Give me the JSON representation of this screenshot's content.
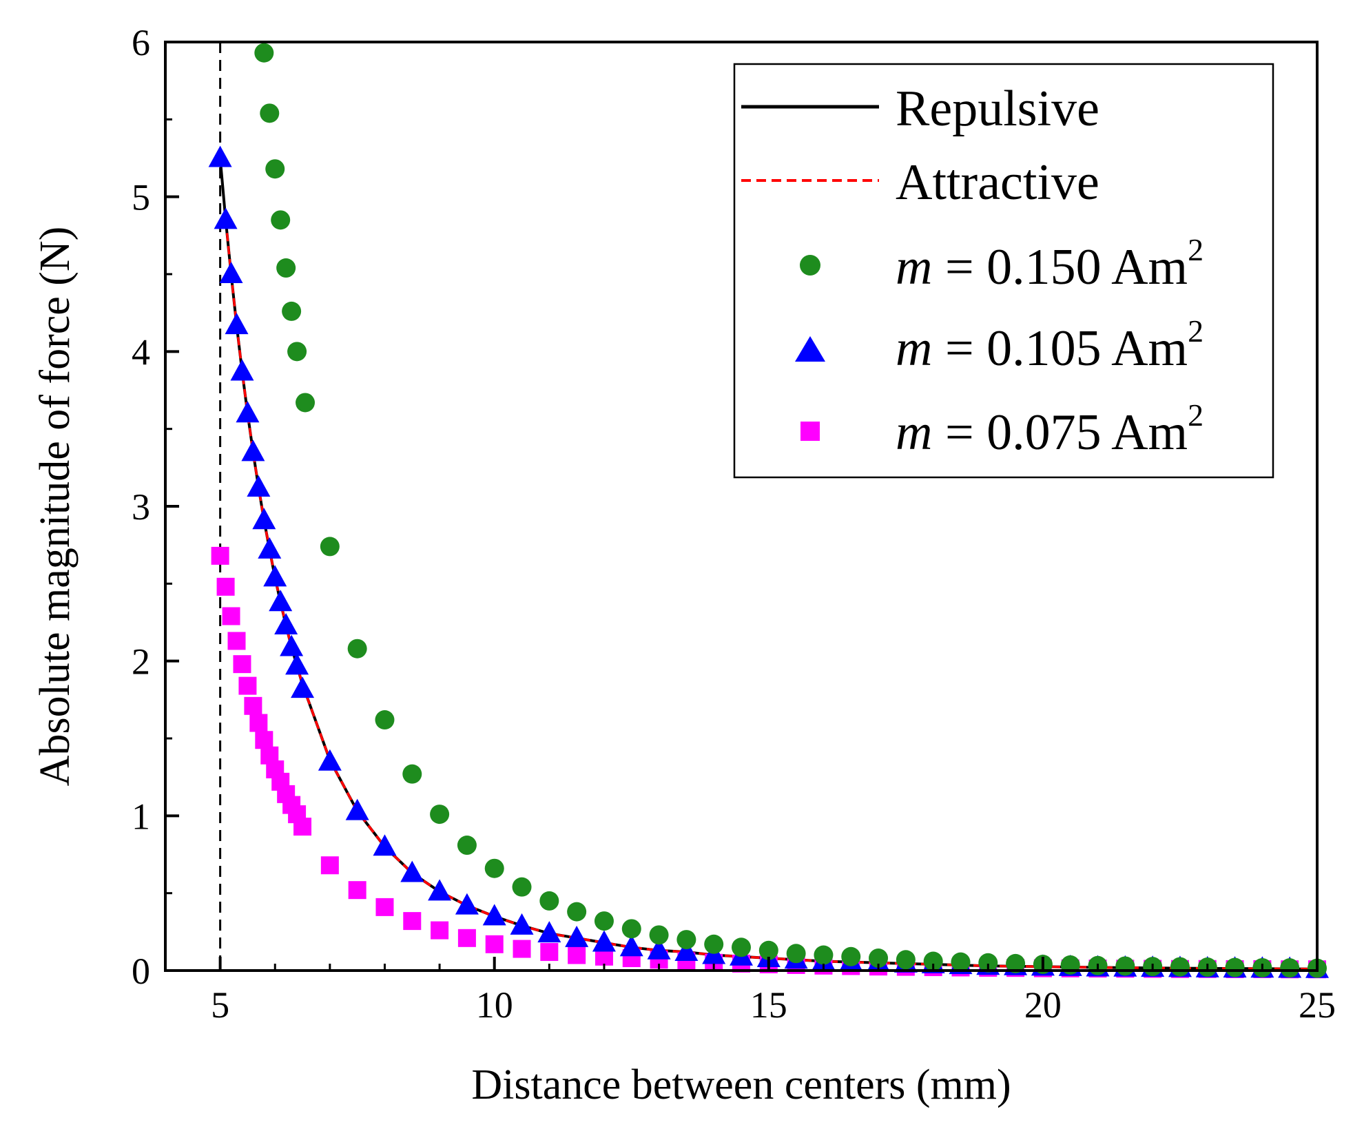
{
  "chart_data": {
    "type": "scatter",
    "title": "",
    "xlabel": "Distance between centers (mm)",
    "ylabel": "Absolute magnitude of force (N)",
    "xlim": [
      4,
      25
    ],
    "ylim": [
      0,
      6
    ],
    "xticks": [
      5,
      10,
      15,
      20,
      25
    ],
    "yticks": [
      0,
      1,
      2,
      3,
      4,
      5,
      6
    ],
    "grid": false,
    "legend_position": "top-right",
    "reference_line": {
      "x": 5,
      "style": "dashed",
      "color": "#000000"
    },
    "lines": [
      {
        "name": "Repulsive",
        "color": "#000000",
        "style": "solid",
        "x": [
          5.0,
          5.1,
          5.2,
          5.3,
          5.4,
          5.5,
          5.6,
          5.7,
          5.8,
          5.9,
          6.0,
          6.1,
          6.2,
          6.3,
          6.4,
          6.5,
          7.0,
          7.5,
          8.0,
          8.5,
          9.0,
          9.5,
          10.0,
          10.5,
          11.0,
          11.5,
          12.0,
          12.5,
          13.0,
          13.5,
          14.0,
          14.5,
          15.0,
          15.5,
          16.0,
          17.0,
          18.0,
          19.0,
          20.0,
          21.0,
          22.0,
          23.0,
          24.0,
          25.0
        ],
        "y": [
          5.25,
          4.85,
          4.5,
          4.17,
          3.87,
          3.6,
          3.35,
          3.12,
          2.91,
          2.72,
          2.54,
          2.38,
          2.23,
          2.09,
          1.97,
          1.85,
          1.36,
          1.03,
          0.8,
          0.63,
          0.51,
          0.42,
          0.35,
          0.29,
          0.24,
          0.21,
          0.18,
          0.15,
          0.13,
          0.12,
          0.1,
          0.09,
          0.08,
          0.07,
          0.06,
          0.05,
          0.04,
          0.03,
          0.025,
          0.02,
          0.017,
          0.014,
          0.012,
          0.01
        ]
      },
      {
        "name": "Attractive",
        "color": "#ff0000",
        "style": "dashed",
        "x": [
          5.1,
          5.2,
          5.3,
          5.4,
          5.5,
          5.6,
          5.7,
          5.8,
          5.9,
          6.0,
          6.1,
          6.2,
          6.3,
          6.4,
          6.5,
          7.0,
          7.5,
          8.0,
          8.5,
          9.0,
          9.5,
          10.0,
          10.5,
          11.0,
          11.5,
          12.0,
          12.5,
          13.0,
          13.5,
          14.0,
          14.5,
          15.0,
          15.5,
          16.0,
          17.0,
          18.0,
          19.0,
          20.0,
          21.0,
          22.0,
          23.0,
          24.0,
          25.0
        ],
        "y": [
          4.85,
          4.5,
          4.17,
          3.87,
          3.6,
          3.35,
          3.12,
          2.91,
          2.72,
          2.54,
          2.38,
          2.23,
          2.09,
          1.97,
          1.85,
          1.36,
          1.03,
          0.8,
          0.63,
          0.51,
          0.42,
          0.35,
          0.29,
          0.24,
          0.21,
          0.18,
          0.15,
          0.13,
          0.12,
          0.1,
          0.09,
          0.08,
          0.07,
          0.06,
          0.05,
          0.04,
          0.03,
          0.025,
          0.02,
          0.017,
          0.014,
          0.012,
          0.01
        ]
      }
    ],
    "series": [
      {
        "name": "m = 0.150 Am2",
        "label_parts": {
          "var": "m",
          "rest": " = 0.150 Am",
          "sup": "2"
        },
        "marker": "circle",
        "color": "#1e8c1e",
        "x": [
          5.8,
          5.9,
          6.0,
          6.1,
          6.2,
          6.3,
          6.4,
          6.55,
          7.0,
          7.5,
          8.0,
          8.5,
          9.0,
          9.5,
          10.0,
          10.5,
          11.0,
          11.5,
          12.0,
          12.5,
          13.0,
          13.5,
          14.0,
          14.5,
          15.0,
          15.5,
          16.0,
          16.5,
          17.0,
          17.5,
          18.0,
          18.5,
          19.0,
          19.5,
          20.0,
          20.5,
          21.0,
          21.5,
          22.0,
          22.5,
          23.0,
          23.5,
          24.0,
          24.5,
          25.0
        ],
        "y": [
          5.93,
          5.54,
          5.18,
          4.85,
          4.54,
          4.26,
          4.0,
          3.67,
          2.74,
          2.08,
          1.62,
          1.27,
          1.01,
          0.81,
          0.66,
          0.54,
          0.45,
          0.38,
          0.32,
          0.27,
          0.23,
          0.2,
          0.17,
          0.15,
          0.13,
          0.11,
          0.1,
          0.09,
          0.08,
          0.07,
          0.06,
          0.055,
          0.05,
          0.045,
          0.04,
          0.036,
          0.032,
          0.029,
          0.026,
          0.024,
          0.022,
          0.02,
          0.018,
          0.017,
          0.015
        ]
      },
      {
        "name": "m = 0.105 Am2",
        "label_parts": {
          "var": "m",
          "rest": " = 0.105 Am",
          "sup": "2"
        },
        "marker": "triangle",
        "color": "#0000ff",
        "x": [
          5.0,
          5.1,
          5.2,
          5.3,
          5.4,
          5.5,
          5.6,
          5.7,
          5.8,
          5.9,
          6.0,
          6.1,
          6.2,
          6.3,
          6.4,
          6.5,
          7.0,
          7.5,
          8.0,
          8.5,
          9.0,
          9.5,
          10.0,
          10.5,
          11.0,
          11.5,
          12.0,
          12.5,
          13.0,
          13.5,
          14.0,
          14.5,
          15.0,
          15.5,
          16.0,
          16.5,
          17.0,
          17.5,
          18.0,
          18.5,
          19.0,
          19.5,
          20.0,
          20.5,
          21.0,
          21.5,
          22.0,
          22.5,
          23.0,
          23.5,
          24.0,
          24.5,
          25.0
        ],
        "y": [
          5.25,
          4.85,
          4.5,
          4.17,
          3.87,
          3.6,
          3.35,
          3.12,
          2.91,
          2.72,
          2.54,
          2.38,
          2.23,
          2.09,
          1.97,
          1.82,
          1.35,
          1.03,
          0.8,
          0.63,
          0.51,
          0.42,
          0.35,
          0.29,
          0.24,
          0.21,
          0.18,
          0.15,
          0.13,
          0.12,
          0.1,
          0.09,
          0.08,
          0.07,
          0.06,
          0.055,
          0.05,
          0.045,
          0.04,
          0.035,
          0.03,
          0.028,
          0.025,
          0.023,
          0.02,
          0.019,
          0.017,
          0.016,
          0.014,
          0.013,
          0.012,
          0.011,
          0.01
        ]
      },
      {
        "name": "m = 0.075 Am2",
        "label_parts": {
          "var": "m",
          "rest": " = 0.075 Am",
          "sup": "2"
        },
        "marker": "square",
        "color": "#ff00ff",
        "x": [
          5.0,
          5.1,
          5.2,
          5.3,
          5.4,
          5.5,
          5.6,
          5.7,
          5.8,
          5.9,
          6.0,
          6.1,
          6.2,
          6.3,
          6.4,
          6.5,
          7.0,
          7.5,
          8.0,
          8.5,
          9.0,
          9.5,
          10.0,
          10.5,
          11.0,
          11.5,
          12.0,
          12.5,
          13.0,
          13.5,
          14.0,
          14.5,
          15.0,
          15.5,
          16.0,
          16.5,
          17.0,
          17.5,
          18.0,
          18.5,
          19.0,
          19.5,
          20.0,
          20.5,
          21.0,
          21.5,
          22.0,
          22.5,
          23.0,
          23.5,
          24.0,
          24.5,
          25.0
        ],
        "y": [
          2.68,
          2.48,
          2.29,
          2.13,
          1.98,
          1.84,
          1.71,
          1.6,
          1.49,
          1.39,
          1.3,
          1.22,
          1.14,
          1.07,
          1.01,
          0.93,
          0.68,
          0.52,
          0.41,
          0.32,
          0.26,
          0.21,
          0.17,
          0.14,
          0.12,
          0.1,
          0.09,
          0.08,
          0.07,
          0.06,
          0.05,
          0.045,
          0.04,
          0.036,
          0.032,
          0.029,
          0.026,
          0.024,
          0.022,
          0.02,
          0.018,
          0.017,
          0.015,
          0.014,
          0.013,
          0.012,
          0.011,
          0.01,
          0.01,
          0.009,
          0.009,
          0.008,
          0.008
        ]
      }
    ]
  }
}
